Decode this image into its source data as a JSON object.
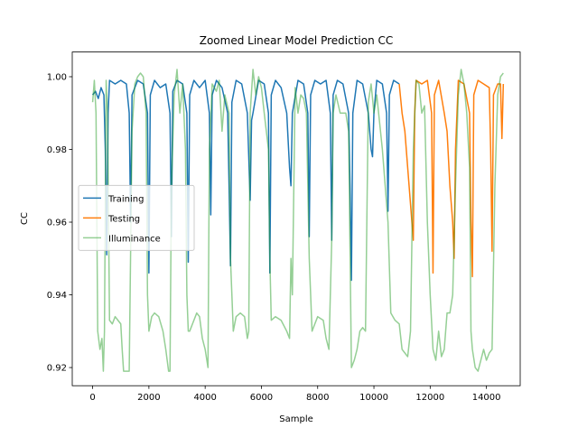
{
  "chart_data": {
    "type": "line",
    "title": "Zoomed Linear Model Prediction CC",
    "x_label": "Sample",
    "y_label": "CC",
    "xlim": [
      -725,
      15200
    ],
    "ylim": [
      0.915,
      1.0068
    ],
    "xticks": [
      0,
      2000,
      4000,
      6000,
      8000,
      10000,
      12000,
      14000
    ],
    "yticks": [
      0.92,
      0.94,
      0.96,
      0.98,
      {
        "value": 1,
        "label": "1.00"
      }
    ],
    "legend": "center left",
    "grid": false,
    "series": [
      {
        "name": "Training",
        "color": "#1f77b4",
        "alpha": 1,
        "x": [
          0,
          100,
          200,
          300,
          400,
          450,
          500,
          550,
          600,
          800,
          1000,
          1200,
          1300,
          1350,
          1400,
          1600,
          1800,
          1950,
          2000,
          2050,
          2200,
          2400,
          2600,
          2750,
          2800,
          2850,
          3000,
          3200,
          3350,
          3400,
          3450,
          3600,
          3800,
          4000,
          4150,
          4200,
          4250,
          4400,
          4600,
          4800,
          4850,
          4900,
          4950,
          5100,
          5300,
          5500,
          5600,
          5650,
          5700,
          5900,
          6100,
          6250,
          6300,
          6350,
          6500,
          6700,
          6900,
          7000,
          7050,
          7100,
          7300,
          7500,
          7650,
          7700,
          7750,
          7900,
          8100,
          8300,
          8450,
          8500,
          8550,
          8700,
          8900,
          9100,
          9150,
          9200,
          9250,
          9400,
          9600,
          9800,
          9900,
          9950,
          10000,
          10100,
          10300,
          10450,
          10500,
          10550,
          10700,
          10900
        ],
        "values": [
          0.995,
          0.996,
          0.994,
          0.997,
          0.995,
          0.98,
          0.951,
          0.99,
          0.999,
          0.998,
          0.999,
          0.998,
          0.99,
          0.96,
          0.995,
          0.999,
          0.998,
          0.99,
          0.946,
          0.995,
          0.999,
          0.997,
          0.998,
          0.99,
          0.956,
          0.996,
          0.999,
          0.998,
          0.99,
          0.949,
          0.995,
          0.999,
          0.997,
          0.999,
          0.99,
          0.962,
          0.995,
          0.999,
          0.997,
          0.99,
          0.97,
          0.948,
          0.993,
          0.999,
          0.998,
          0.99,
          0.966,
          0.988,
          0.99,
          0.999,
          0.998,
          0.99,
          0.946,
          0.995,
          0.999,
          0.997,
          0.99,
          0.975,
          0.97,
          0.99,
          0.999,
          0.998,
          0.99,
          0.956,
          0.995,
          0.999,
          0.998,
          0.999,
          0.99,
          0.955,
          0.995,
          0.999,
          0.998,
          0.99,
          0.97,
          0.944,
          0.99,
          0.999,
          0.998,
          0.99,
          0.98,
          0.978,
          0.99,
          0.999,
          0.998,
          0.99,
          0.963,
          0.995,
          0.999,
          0.998
        ]
      },
      {
        "name": "Testing",
        "color": "#ff7f0e",
        "alpha": 1,
        "x": [
          10900,
          11000,
          11100,
          11200,
          11300,
          11350,
          11400,
          11450,
          11500,
          11700,
          11900,
          12050,
          12100,
          12150,
          12300,
          12500,
          12600,
          12700,
          12800,
          12850,
          12900,
          13000,
          13200,
          13400,
          13450,
          13500,
          13550,
          13700,
          13900,
          14100,
          14150,
          14200,
          14250,
          14400,
          14500,
          14550,
          14600
        ],
        "values": [
          0.998,
          0.99,
          0.985,
          0.975,
          0.965,
          0.96,
          0.955,
          0.99,
          0.999,
          0.998,
          0.999,
          0.99,
          0.946,
          0.995,
          0.999,
          0.99,
          0.985,
          0.97,
          0.96,
          0.95,
          0.98,
          0.999,
          0.998,
          0.99,
          0.96,
          0.945,
          0.995,
          0.999,
          0.998,
          0.997,
          0.98,
          0.952,
          0.995,
          0.998,
          0.998,
          0.983,
          0.998
        ]
      },
      {
        "name": "Illuminance",
        "color": "#2ca02c",
        "alpha": 0.5,
        "x": [
          0,
          60,
          120,
          180,
          260,
          330,
          380,
          420,
          480,
          530,
          600,
          700,
          800,
          900,
          1000,
          1050,
          1100,
          1200,
          1300,
          1400,
          1500,
          1600,
          1700,
          1800,
          1900,
          1950,
          2000,
          2100,
          2200,
          2350,
          2500,
          2600,
          2700,
          2750,
          2800,
          2900,
          3000,
          3100,
          3200,
          3300,
          3350,
          3400,
          3450,
          3550,
          3700,
          3800,
          3900,
          4000,
          4100,
          4150,
          4250,
          4400,
          4500,
          4600,
          4700,
          4850,
          4900,
          5000,
          5100,
          5250,
          5400,
          5500,
          5550,
          5600,
          5700,
          5800,
          5900,
          6000,
          6100,
          6250,
          6300,
          6350,
          6500,
          6700,
          6900,
          7000,
          7050,
          7100,
          7200,
          7300,
          7400,
          7500,
          7600,
          7700,
          7800,
          7900,
          8000,
          8200,
          8300,
          8400,
          8500,
          8550,
          8650,
          8800,
          9000,
          9100,
          9200,
          9300,
          9400,
          9500,
          9600,
          9700,
          9800,
          9900,
          10000,
          10100,
          10300,
          10500,
          10600,
          10750,
          10900,
          11000,
          11200,
          11300,
          11400,
          11500,
          11600,
          11700,
          11800,
          11900,
          12000,
          12100,
          12200,
          12300,
          12400,
          12500,
          12600,
          12700,
          12800,
          12900,
          13000,
          13100,
          13200,
          13300,
          13400,
          13450,
          13500,
          13600,
          13700,
          13800,
          13900,
          14000,
          14100,
          14200,
          14300,
          14400,
          14500,
          14600
        ],
        "values": [
          0.993,
          0.999,
          0.99,
          0.93,
          0.925,
          0.928,
          0.919,
          0.93,
          0.999,
          0.99,
          0.933,
          0.932,
          0.934,
          0.933,
          0.932,
          0.925,
          0.919,
          0.919,
          0.919,
          0.985,
          0.998,
          1.0,
          1.001,
          1.0,
          0.99,
          0.94,
          0.93,
          0.934,
          0.935,
          0.934,
          0.93,
          0.925,
          0.919,
          0.919,
          0.97,
          0.995,
          1.002,
          0.99,
          0.998,
          0.98,
          0.94,
          0.93,
          0.93,
          0.932,
          0.935,
          0.934,
          0.928,
          0.925,
          0.92,
          0.98,
          0.998,
          0.996,
          0.999,
          0.985,
          0.995,
          0.99,
          0.95,
          0.93,
          0.934,
          0.935,
          0.934,
          0.928,
          0.93,
          0.99,
          1.002,
          0.995,
          1.0,
          0.997,
          0.99,
          0.98,
          0.95,
          0.933,
          0.934,
          0.933,
          0.93,
          0.928,
          0.95,
          0.94,
          0.997,
          0.99,
          0.995,
          0.994,
          0.99,
          0.95,
          0.93,
          0.932,
          0.934,
          0.933,
          0.928,
          0.925,
          0.955,
          0.99,
          0.995,
          0.99,
          0.99,
          0.985,
          0.92,
          0.922,
          0.925,
          0.93,
          0.931,
          0.93,
          0.993,
          0.998,
          0.99,
          0.995,
          0.98,
          0.96,
          0.935,
          0.933,
          0.932,
          0.925,
          0.923,
          0.93,
          0.98,
          0.999,
          0.998,
          0.99,
          0.992,
          0.96,
          0.94,
          0.925,
          0.922,
          0.93,
          0.923,
          0.925,
          0.935,
          0.935,
          0.94,
          0.97,
          0.995,
          1.002,
          0.998,
          0.99,
          0.975,
          0.93,
          0.925,
          0.92,
          0.919,
          0.922,
          0.925,
          0.922,
          0.924,
          0.925,
          0.97,
          0.995,
          1.0,
          1.001
        ]
      }
    ]
  }
}
